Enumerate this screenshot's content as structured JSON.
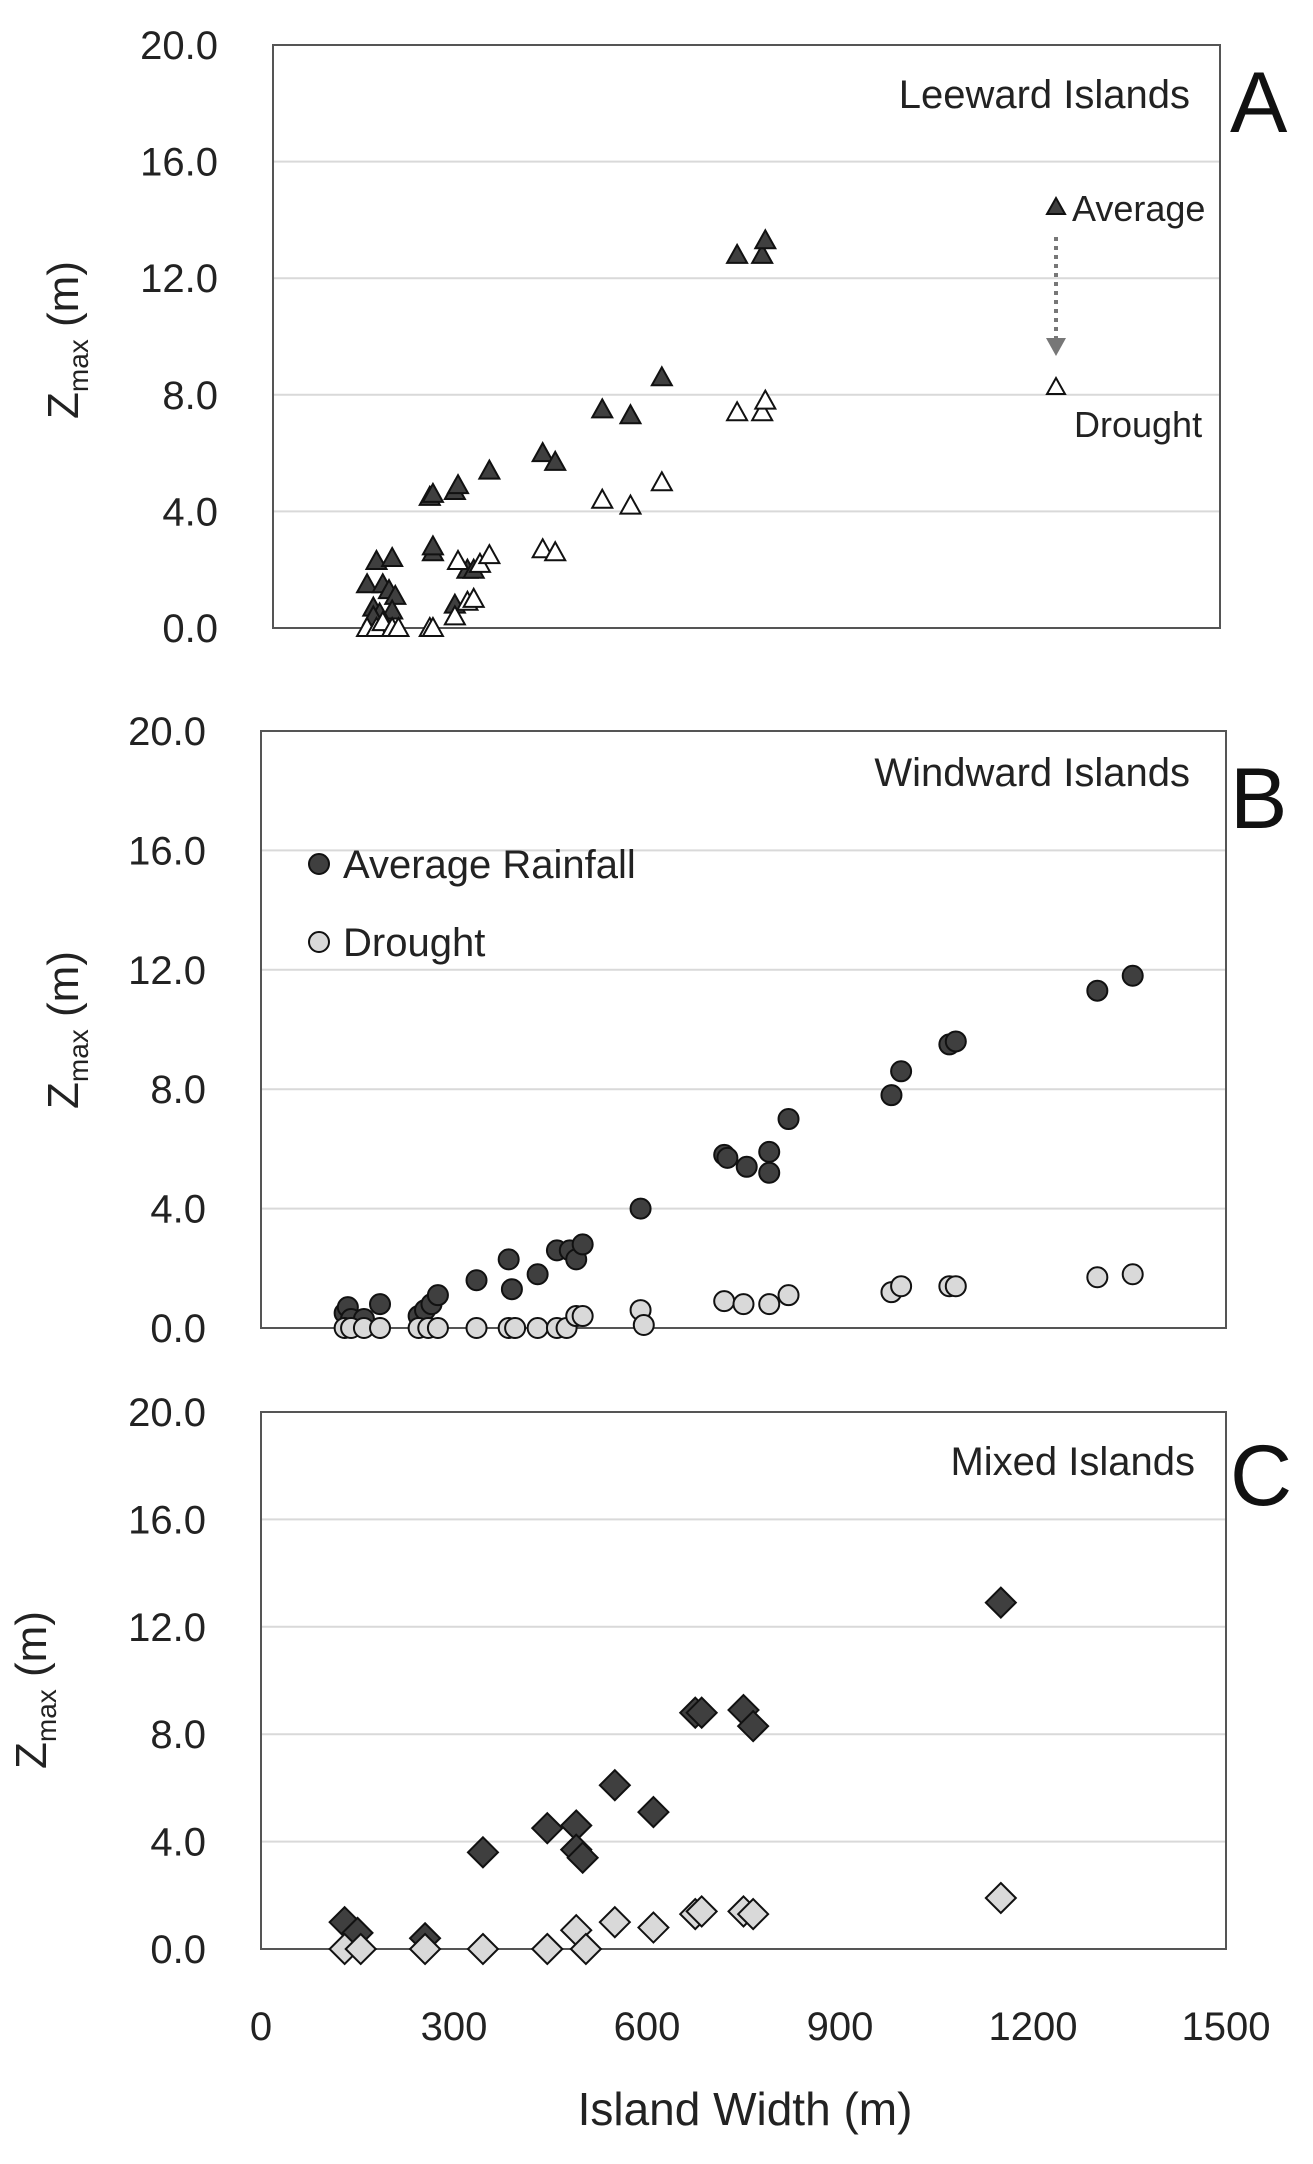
{
  "colors": {
    "average": "#3f3f3f",
    "drought": "#d9d9d9",
    "stroke": "#111111",
    "grid": "#d9d9d9"
  },
  "x_axis": {
    "title": "Island Width (m)",
    "ticks": [
      "0",
      "300",
      "600",
      "900",
      "1200",
      "1500"
    ]
  },
  "chart_data": [
    {
      "type": "scatter",
      "panel": "A",
      "title": "Leeward Islands",
      "letter": "A",
      "ylabel": "Z",
      "ylabel_sub": "max",
      "ylabel_unit": " (m)",
      "xlim": [
        0,
        1500
      ],
      "ylim": [
        0,
        20
      ],
      "yticks": [
        "0.0",
        "4.0",
        "8.0",
        "12.0",
        "16.0",
        "20.0"
      ],
      "marker": "triangle",
      "legend": {
        "average_label": "Average",
        "drought_label": "Drought",
        "position": "top-right"
      },
      "series": [
        {
          "name": "Average",
          "points": [
            [
              160,
              1.5
            ],
            [
              175,
              2.3
            ],
            [
              200,
              2.4
            ],
            [
              170,
              0.7
            ],
            [
              185,
              1.5
            ],
            [
              195,
              1.3
            ],
            [
              205,
              1.1
            ],
            [
              200,
              0.6
            ],
            [
              180,
              0.5
            ],
            [
              170,
              0.4
            ],
            [
              260,
              4.5
            ],
            [
              265,
              4.6
            ],
            [
              265,
              2.6
            ],
            [
              265,
              2.8
            ],
            [
              300,
              4.7
            ],
            [
              305,
              4.9
            ],
            [
              300,
              0.8
            ],
            [
              320,
              2.0
            ],
            [
              330,
              2.0
            ],
            [
              355,
              5.4
            ],
            [
              440,
              6.0
            ],
            [
              460,
              5.7
            ],
            [
              535,
              7.5
            ],
            [
              580,
              7.3
            ],
            [
              630,
              8.6
            ],
            [
              750,
              12.8
            ],
            [
              790,
              12.8
            ],
            [
              795,
              13.3
            ]
          ]
        },
        {
          "name": "Drought",
          "points": [
            [
              160,
              0.0
            ],
            [
              175,
              0.0
            ],
            [
              185,
              0.2
            ],
            [
              200,
              0.0
            ],
            [
              210,
              0.0
            ],
            [
              260,
              0.0
            ],
            [
              265,
              0.0
            ],
            [
              300,
              0.4
            ],
            [
              305,
              2.3
            ],
            [
              320,
              0.9
            ],
            [
              330,
              1.0
            ],
            [
              340,
              2.2
            ],
            [
              355,
              2.5
            ],
            [
              440,
              2.7
            ],
            [
              460,
              2.6
            ],
            [
              535,
              4.4
            ],
            [
              580,
              4.2
            ],
            [
              630,
              5.0
            ],
            [
              750,
              7.4
            ],
            [
              790,
              7.4
            ],
            [
              795,
              7.8
            ]
          ]
        }
      ]
    },
    {
      "type": "scatter",
      "panel": "B",
      "title": "Windward Islands",
      "letter": "B",
      "ylabel": "Z",
      "ylabel_sub": "max",
      "ylabel_unit": " (m)",
      "xlim": [
        0,
        1500
      ],
      "ylim": [
        0,
        20
      ],
      "yticks": [
        "0.0",
        "4.0",
        "8.0",
        "12.0",
        "16.0",
        "20.0"
      ],
      "marker": "circle",
      "legend": {
        "average_label": "Average Rainfall",
        "drought_label": "Drought",
        "position": "top-left"
      },
      "series": [
        {
          "name": "Average Rainfall",
          "points": [
            [
              130,
              0.5
            ],
            [
              135,
              0.7
            ],
            [
              140,
              0.3
            ],
            [
              160,
              0.3
            ],
            [
              185,
              0.8
            ],
            [
              245,
              0.4
            ],
            [
              255,
              0.6
            ],
            [
              265,
              0.8
            ],
            [
              275,
              1.1
            ],
            [
              335,
              1.6
            ],
            [
              385,
              2.3
            ],
            [
              390,
              1.3
            ],
            [
              430,
              1.8
            ],
            [
              460,
              2.6
            ],
            [
              480,
              2.6
            ],
            [
              490,
              2.3
            ],
            [
              500,
              2.8
            ],
            [
              590,
              4.0
            ],
            [
              720,
              5.8
            ],
            [
              725,
              5.7
            ],
            [
              755,
              5.4
            ],
            [
              790,
              5.9
            ],
            [
              790,
              5.2
            ],
            [
              820,
              7.0
            ],
            [
              980,
              7.8
            ],
            [
              995,
              8.6
            ],
            [
              1070,
              9.5
            ],
            [
              1080,
              9.6
            ],
            [
              1300,
              11.3
            ],
            [
              1355,
              11.8
            ]
          ]
        },
        {
          "name": "Drought",
          "points": [
            [
              130,
              0.0
            ],
            [
              140,
              0.0
            ],
            [
              160,
              0.0
            ],
            [
              185,
              0.0
            ],
            [
              245,
              0.0
            ],
            [
              260,
              0.0
            ],
            [
              275,
              0.0
            ],
            [
              335,
              0.0
            ],
            [
              385,
              0.0
            ],
            [
              395,
              0.0
            ],
            [
              430,
              0.0
            ],
            [
              460,
              0.0
            ],
            [
              475,
              0.0
            ],
            [
              490,
              0.4
            ],
            [
              500,
              0.4
            ],
            [
              590,
              0.6
            ],
            [
              595,
              0.1
            ],
            [
              720,
              0.9
            ],
            [
              750,
              0.8
            ],
            [
              790,
              0.8
            ],
            [
              820,
              1.1
            ],
            [
              980,
              1.2
            ],
            [
              995,
              1.4
            ],
            [
              1070,
              1.4
            ],
            [
              1080,
              1.4
            ],
            [
              1300,
              1.7
            ],
            [
              1355,
              1.8
            ]
          ]
        }
      ]
    },
    {
      "type": "scatter",
      "panel": "C",
      "title": "Mixed Islands",
      "letter": "C",
      "ylabel": "Z",
      "ylabel_sub": "max",
      "ylabel_unit": " (m)",
      "xlim": [
        0,
        1500
      ],
      "ylim": [
        0,
        20
      ],
      "yticks": [
        "0.0",
        "4.0",
        "8.0",
        "12.0",
        "16.0",
        "20.0"
      ],
      "marker": "diamond",
      "series": [
        {
          "name": "Average",
          "points": [
            [
              130,
              1.0
            ],
            [
              150,
              0.6
            ],
            [
              255,
              0.4
            ],
            [
              345,
              3.6
            ],
            [
              445,
              4.5
            ],
            [
              490,
              4.6
            ],
            [
              490,
              3.7
            ],
            [
              500,
              3.4
            ],
            [
              550,
              6.1
            ],
            [
              610,
              5.1
            ],
            [
              675,
              8.8
            ],
            [
              685,
              8.8
            ],
            [
              750,
              8.9
            ],
            [
              765,
              8.3
            ],
            [
              1150,
              12.9
            ]
          ]
        },
        {
          "name": "Drought",
          "points": [
            [
              130,
              0.0
            ],
            [
              155,
              0.0
            ],
            [
              255,
              0.0
            ],
            [
              345,
              0.0
            ],
            [
              445,
              0.0
            ],
            [
              490,
              0.7
            ],
            [
              505,
              0.0
            ],
            [
              550,
              1.0
            ],
            [
              610,
              0.8
            ],
            [
              675,
              1.3
            ],
            [
              685,
              1.4
            ],
            [
              750,
              1.4
            ],
            [
              765,
              1.3
            ],
            [
              1150,
              1.9
            ]
          ]
        }
      ]
    }
  ]
}
